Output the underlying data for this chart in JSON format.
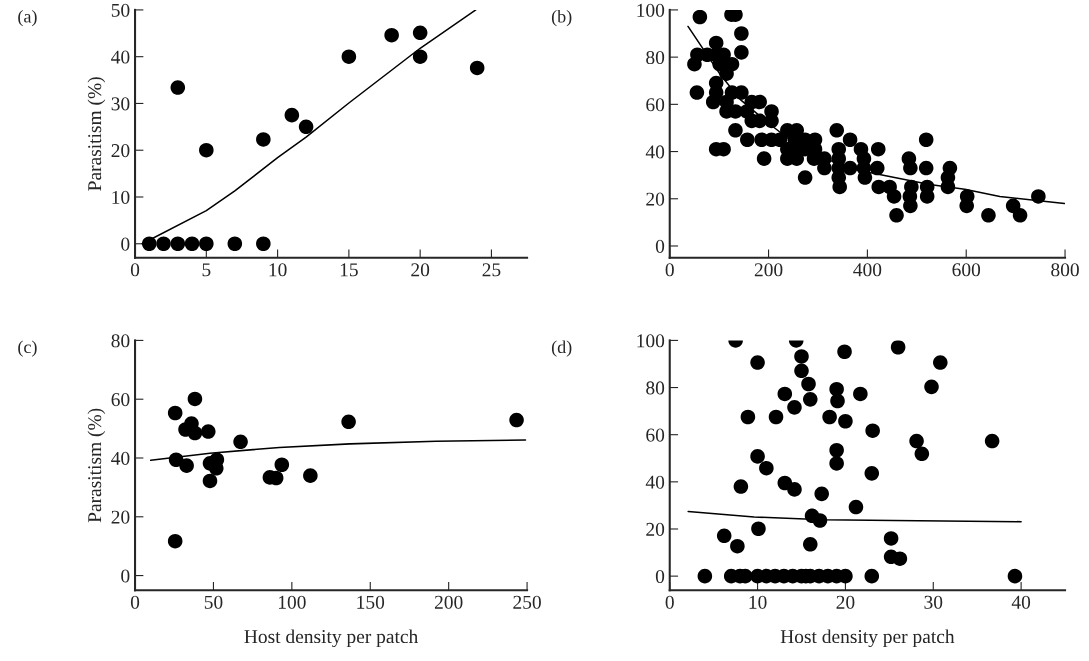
{
  "chart_data": [
    {
      "type": "scatter",
      "title": "(a)",
      "ylabel": "Parasitism (%)",
      "xlim": [
        0,
        27.5
      ],
      "ylim": [
        -3,
        50
      ],
      "xticks": [
        0,
        5,
        10,
        15,
        20,
        25
      ],
      "yticks": [
        0,
        10,
        20,
        30,
        40,
        50
      ],
      "grid": false,
      "legend": false,
      "series": [
        {
          "type": "scatter",
          "color": "#000000",
          "marker": "circle",
          "x": [
            1,
            2,
            3,
            4,
            5,
            7,
            9,
            3,
            5,
            9,
            11,
            12,
            15,
            18,
            20,
            20,
            24
          ],
          "values": [
            0,
            0,
            0,
            0,
            0,
            0,
            0,
            33.4,
            20,
            22.3,
            27.5,
            25,
            40,
            44.6,
            45.1,
            40,
            37.6
          ]
        },
        {
          "type": "line",
          "color": "#000000",
          "marker": "none",
          "line_style": "solid",
          "x": [
            0.5,
            5,
            7,
            10,
            12,
            15,
            20,
            23.9
          ],
          "values": [
            0,
            7.1,
            11.3,
            18.4,
            22.8,
            30.1,
            41.8,
            50
          ]
        }
      ]
    },
    {
      "type": "scatter",
      "title": "(b)",
      "xlim": [
        0,
        800
      ],
      "ylim": [
        -5,
        100
      ],
      "xticks": [
        0,
        200,
        400,
        600,
        800
      ],
      "yticks": [
        0,
        20,
        40,
        60,
        80,
        100
      ],
      "grid": false,
      "legend": false,
      "series": [
        {
          "type": "scatter",
          "color": "#000000",
          "marker": "circle",
          "x": [
            50,
            55,
            56,
            61,
            76,
            94,
            94,
            94,
            94,
            88,
            94,
            109,
            109,
            101,
            115,
            126,
            115,
            115,
            126,
            133,
            133,
            125,
            133,
            145,
            145,
            145,
            156,
            157,
            166,
            166,
            182,
            182,
            186,
            191,
            206,
            206,
            206,
            223,
            238,
            238,
            238,
            257,
            257,
            257,
            253,
            274,
            274,
            274,
            294,
            294,
            292,
            313,
            313,
            338,
            342,
            342,
            342,
            342,
            344,
            365,
            365,
            387,
            393,
            393,
            395,
            422,
            420,
            423,
            445,
            454,
            459,
            484,
            487,
            489,
            486,
            487,
            519,
            519,
            521,
            521,
            563,
            567,
            563,
            602,
            601,
            645,
            695,
            709,
            746
          ],
          "values": [
            77,
            65,
            81,
            97,
            81,
            86,
            81,
            69,
            65,
            61,
            41,
            41,
            81,
            77,
            73,
            77,
            61,
            57,
            65,
            57,
            49,
            98,
            98,
            90,
            82,
            65,
            57,
            45,
            53,
            61,
            61,
            53,
            45,
            37,
            57,
            53,
            45,
            45,
            49,
            41,
            37,
            49,
            41,
            37,
            45,
            45,
            41,
            29,
            45,
            41,
            37,
            37,
            33,
            49,
            41,
            37,
            33,
            29,
            25,
            45,
            33,
            41,
            37,
            33,
            29,
            41,
            33,
            25,
            25,
            21,
            13,
            37,
            33,
            25,
            21,
            17,
            45,
            33,
            25,
            21,
            29,
            33,
            25,
            21,
            17,
            13,
            17,
            13,
            21
          ]
        },
        {
          "type": "line",
          "color": "#000000",
          "marker": "none",
          "line_style": "solid",
          "x": [
            37,
            101,
            143,
            200,
            243,
            313,
            384,
            455,
            526,
            597,
            668,
            799
          ],
          "values": [
            93,
            73,
            62,
            52,
            45,
            37,
            32,
            29,
            26,
            24,
            21,
            18
          ]
        }
      ]
    },
    {
      "type": "scatter",
      "title": "(c)",
      "ylabel": "Parasitism (%)",
      "xlabel": "Host density per patch",
      "xlim": [
        0,
        250
      ],
      "ylim": [
        -5,
        80
      ],
      "xticks": [
        0,
        50,
        100,
        150,
        200,
        250
      ],
      "yticks": [
        0,
        20,
        40,
        60,
        80
      ],
      "grid": false,
      "legend": false,
      "series": [
        {
          "type": "scatter",
          "color": "#000000",
          "marker": "circle",
          "x": [
            25.6,
            26.2,
            25.6,
            32.2,
            32.9,
            36,
            38.2,
            38.2,
            46.7,
            47.8,
            47.8,
            52.2,
            51.8,
            67.3,
            86,
            90,
            93.6,
            111.8,
            136.2,
            243.3
          ],
          "values": [
            55.3,
            39.4,
            11.7,
            49.7,
            37.4,
            51.7,
            60.1,
            48.5,
            49,
            38.2,
            32.2,
            39.4,
            36.5,
            45.5,
            33.4,
            33.2,
            37.7,
            34,
            52.3,
            52.9
          ]
        },
        {
          "type": "line",
          "color": "#000000",
          "marker": "none",
          "line_style": "solid",
          "x": [
            10,
            47.8,
            92,
            137,
            192,
            249
          ],
          "values": [
            39.2,
            41.6,
            43.6,
            44.8,
            45.7,
            46.1
          ]
        }
      ]
    },
    {
      "type": "scatter",
      "title": "(d)",
      "xlabel": "Host density per patch",
      "xlim": [
        0,
        45
      ],
      "ylim": [
        -6,
        100
      ],
      "xticks": [
        0,
        10,
        20,
        30,
        40
      ],
      "yticks": [
        0,
        20,
        40,
        60,
        80,
        100
      ],
      "grid": false,
      "legend": false,
      "series": [
        {
          "type": "scatter",
          "color": "#000000",
          "marker": "circle",
          "x": [
            7.5,
            14.4,
            15,
            15,
            15.8,
            16,
            14.2,
            13.1,
            10,
            8.9,
            12.1,
            19,
            19.1,
            18.2,
            20,
            19.9,
            21.7,
            26,
            30.8,
            29.8,
            23.1,
            28.1,
            28.7,
            36.7,
            19,
            19,
            10,
            11,
            23,
            8.1,
            13.1,
            14.2,
            17.3,
            21.2,
            16.2,
            17.1,
            10.1,
            6.2,
            7.7,
            16,
            25.2,
            25.2,
            26.2,
            4,
            7,
            8,
            8.6,
            10,
            11,
            12,
            13,
            14,
            15,
            15.5,
            16,
            17,
            18,
            19,
            20,
            23,
            39.3
          ],
          "values": [
            100,
            100,
            93.2,
            87.1,
            81.5,
            75,
            71.6,
            77.3,
            90.6,
            67.5,
            67.5,
            79.3,
            74.3,
            67.5,
            65.7,
            95.2,
            77.3,
            97.1,
            90.6,
            80.3,
            61.7,
            57.3,
            51.9,
            57.3,
            53.4,
            47.8,
            50.8,
            45.8,
            43.6,
            38,
            39.5,
            36.8,
            34.9,
            29.3,
            25.6,
            23.6,
            20.1,
            17.1,
            12.7,
            13.5,
            16,
            8.2,
            7.4,
            0,
            0,
            0,
            0,
            0,
            0,
            0,
            0,
            0,
            0,
            0,
            0,
            0,
            0,
            0,
            0,
            0,
            0
          ]
        },
        {
          "type": "line",
          "color": "#000000",
          "marker": "none",
          "line_style": "solid",
          "x": [
            2.1,
            9.6,
            17.5,
            25.5,
            40
          ],
          "values": [
            27.4,
            25.1,
            23.9,
            23.6,
            23.1
          ]
        }
      ]
    }
  ]
}
